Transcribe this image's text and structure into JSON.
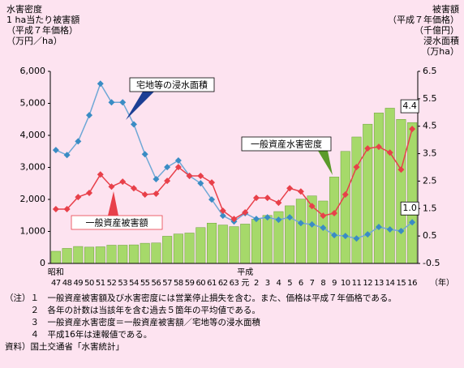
{
  "chart_data": {
    "type": "bar",
    "y_title": [
      "水害密度",
      "1 ha当たり被害額",
      "（平成７年価格）",
      "（万円／ha）"
    ],
    "y2_title": [
      "被害額",
      "（平成７年価格）",
      "（千億円）",
      "浸水面積",
      "（万ha）"
    ],
    "categories": [
      "47",
      "48",
      "49",
      "50",
      "51",
      "52",
      "53",
      "54",
      "55",
      "56",
      "57",
      "58",
      "59",
      "60",
      "61",
      "62",
      "63",
      "元",
      "2",
      "3",
      "4",
      "5",
      "6",
      "7",
      "8",
      "9",
      "10",
      "11",
      "12",
      "13",
      "14",
      "15",
      "16"
    ],
    "x_eras": [
      {
        "label": "昭和",
        "at": "47"
      },
      {
        "label": "平成",
        "at": "元"
      }
    ],
    "x_unit": "（年）",
    "series": [
      {
        "name": "一般資産水害密度",
        "type": "bar",
        "axis": "y",
        "color": "#a6d96a",
        "values": [
          380,
          470,
          530,
          510,
          520,
          570,
          570,
          580,
          630,
          640,
          850,
          920,
          950,
          1120,
          1260,
          1200,
          1150,
          1230,
          1380,
          1500,
          1620,
          1800,
          2010,
          2110,
          1950,
          2700,
          3500,
          3950,
          4350,
          4700,
          4850,
          4500,
          4400
        ]
      },
      {
        "name": "宅地等の浸水面積",
        "type": "line",
        "axis": "y2",
        "color": "#6fa8d6",
        "marker": "#3a8cc4",
        "values": [
          3.63,
          3.45,
          3.95,
          4.9,
          6.05,
          5.37,
          5.37,
          4.57,
          3.48,
          2.57,
          3.01,
          3.25,
          2.69,
          2.42,
          1.83,
          1.24,
          1.03,
          1.33,
          1.12,
          1.18,
          1.09,
          1.18,
          0.97,
          0.92,
          0.8,
          0.53,
          0.5,
          0.41,
          0.56,
          0.83,
          0.74,
          0.68,
          1.0
        ],
        "value_labels": [
          null,
          null,
          null,
          null,
          null,
          null,
          null,
          null,
          null,
          null,
          null,
          null,
          null,
          null,
          null,
          null,
          null,
          null,
          null,
          null,
          null,
          null,
          null,
          null,
          null,
          null,
          null,
          null,
          null,
          null,
          null,
          null,
          "1.0"
        ]
      },
      {
        "name": "一般資産被害額",
        "type": "line",
        "axis": "y2",
        "color": "#e8404a",
        "marker": "#e8404a",
        "values": [
          1.48,
          1.48,
          1.92,
          2.07,
          2.74,
          2.3,
          2.48,
          2.24,
          2.01,
          2.04,
          2.51,
          3.01,
          2.69,
          2.69,
          2.45,
          1.42,
          1.12,
          1.36,
          1.89,
          1.89,
          1.71,
          2.24,
          2.12,
          1.59,
          1.24,
          1.33,
          2.01,
          3.01,
          3.69,
          3.75,
          3.54,
          2.92,
          4.4
        ],
        "value_labels": [
          null,
          null,
          null,
          null,
          null,
          null,
          null,
          null,
          null,
          null,
          null,
          null,
          null,
          null,
          null,
          null,
          null,
          null,
          null,
          null,
          null,
          null,
          null,
          null,
          null,
          null,
          null,
          null,
          null,
          null,
          null,
          null,
          "4.4"
        ]
      }
    ],
    "ylim": [
      0,
      6000
    ],
    "yticks": [
      0,
      {
        "value": 1000,
        "label": "1,000"
      },
      {
        "value": 2000,
        "label": "2,000"
      },
      {
        "value": 3000,
        "label": "3,000"
      },
      {
        "value": 4000,
        "label": "4,000"
      },
      {
        "value": 5000,
        "label": "5,000"
      },
      {
        "value": 6000,
        "label": "6,000"
      }
    ],
    "y2lim": [
      -0.5,
      6.5
    ],
    "y2ticks": [
      -0.5,
      0.5,
      1.5,
      2.5,
      3.5,
      4.5,
      5.5,
      6.5
    ]
  },
  "notes": [
    "（注）１　一般資産被害額及び水害密度には営業停止損失を含む。また、価格は平成７年価格である。",
    "　　　２　各年の計数は当該年を含む過去５箇年の平均値である。",
    "　　　３　一般資産水害密度＝一般資産被害額／宅地等の浸水面積",
    "　　　４　平成16年は速報値である。",
    "資料）国土交通省「水害統計」"
  ]
}
